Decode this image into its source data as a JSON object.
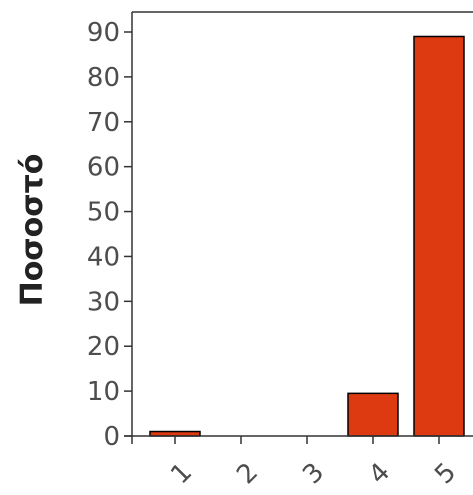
{
  "chart_data": {
    "type": "bar",
    "title": "",
    "xlabel": "",
    "ylabel": "Ποσοστό",
    "categories": [
      "1",
      "2",
      "3",
      "4",
      "5"
    ],
    "values": [
      1,
      0,
      0,
      9.5,
      89
    ],
    "ylim": [
      0,
      90
    ],
    "yticks": [
      0,
      10,
      20,
      30,
      40,
      50,
      60,
      70,
      80,
      90
    ],
    "bar_color": "#DD3A12",
    "bar_edge_color": "#000000",
    "grid": false,
    "legend": "none"
  }
}
